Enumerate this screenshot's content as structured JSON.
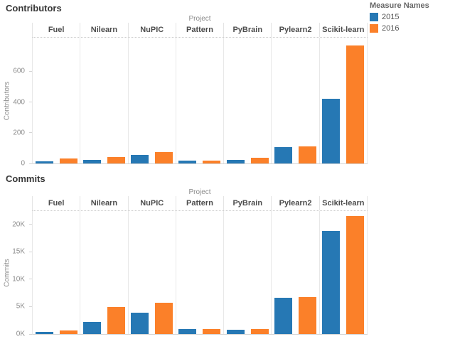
{
  "page": {
    "background": "#ffffff"
  },
  "legend": {
    "title": "Measure Names",
    "position": "top-right",
    "items": [
      {
        "label": "2015",
        "color": "#2678b4"
      },
      {
        "label": "2016",
        "color": "#fb8029"
      }
    ]
  },
  "chart_data": [
    {
      "type": "bar",
      "title": "Contributors",
      "facet_label": "Project",
      "ylabel": "Contributors",
      "categories": [
        "Fuel",
        "Nilearn",
        "NuPIC",
        "Pattern",
        "PyBrain",
        "Pylearn2",
        "Scikit-learn"
      ],
      "series": [
        {
          "name": "2015",
          "color": "#2678b4",
          "values": [
            13,
            22,
            55,
            20,
            25,
            105,
            420
          ]
        },
        {
          "name": "2016",
          "color": "#fb8029",
          "values": [
            31,
            40,
            75,
            18,
            35,
            110,
            770
          ]
        }
      ],
      "ylim": [
        0,
        820
      ],
      "yticks": [
        {
          "value": 0,
          "label": "0"
        },
        {
          "value": 200,
          "label": "200"
        },
        {
          "value": 400,
          "label": "400"
        },
        {
          "value": 600,
          "label": "600"
        }
      ],
      "grid": "column-dividers-only",
      "legend_position": "top-right"
    },
    {
      "type": "bar",
      "title": "Commits",
      "facet_label": "Project",
      "ylabel": "Commits",
      "categories": [
        "Fuel",
        "Nilearn",
        "NuPIC",
        "Pattern",
        "PyBrain",
        "Pylearn2",
        "Scikit-learn"
      ],
      "series": [
        {
          "name": "2015",
          "color": "#2678b4",
          "values": [
            400,
            2200,
            3900,
            850,
            800,
            6600,
            18800
          ]
        },
        {
          "name": "2016",
          "color": "#fb8029",
          "values": [
            700,
            4900,
            5700,
            850,
            900,
            6700,
            21500
          ]
        }
      ],
      "ylim": [
        0,
        22400
      ],
      "yticks": [
        {
          "value": 0,
          "label": "0K"
        },
        {
          "value": 5000,
          "label": "5K"
        },
        {
          "value": 10000,
          "label": "10K"
        },
        {
          "value": 15000,
          "label": "15K"
        },
        {
          "value": 20000,
          "label": "20K"
        }
      ],
      "grid": "column-dividers-only",
      "legend_position": "none"
    }
  ]
}
